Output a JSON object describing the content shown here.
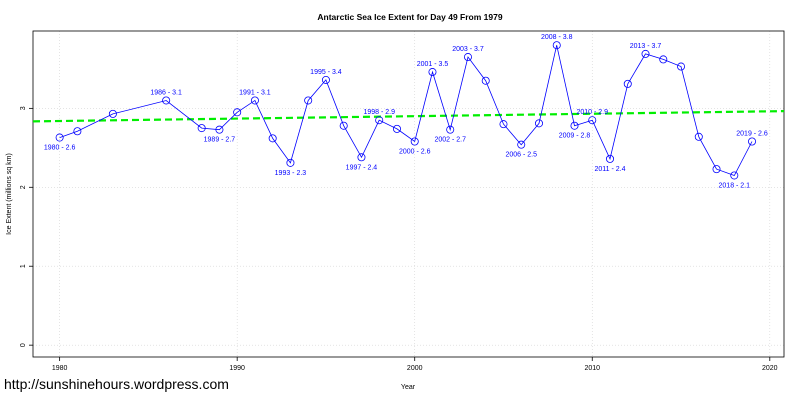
{
  "caption": "http://sunshinehours.wordpress.com",
  "colors": {
    "series_line": "#0000ff",
    "trend_line": "#00ee00",
    "grid": "#d3d3d3",
    "text": "#000000"
  },
  "chart_data": {
    "type": "line",
    "title": "Antarctic Sea Ice Extent for Day 49 From 1979",
    "xlabel": "Year",
    "ylabel": "Ice Extent (millions sq km)",
    "xlim": [
      1978.5,
      2020.8
    ],
    "ylim": [
      -0.15,
      3.98
    ],
    "xticks": [
      1980,
      1990,
      2000,
      2010,
      2020
    ],
    "yticks": [
      0,
      1,
      2,
      3
    ],
    "grid": true,
    "x": [
      1980,
      1981,
      1983,
      1986,
      1988,
      1989,
      1990,
      1991,
      1992,
      1993,
      1994,
      1995,
      1996,
      1997,
      1998,
      1999,
      2000,
      2001,
      2002,
      2003,
      2004,
      2005,
      2006,
      2007,
      2008,
      2009,
      2010,
      2011,
      2012,
      2013,
      2014,
      2015,
      2016,
      2017,
      2018,
      2019
    ],
    "series": [
      {
        "values": [
          2.63,
          2.71,
          2.93,
          3.1,
          2.75,
          2.73,
          2.95,
          3.1,
          2.62,
          2.31,
          3.1,
          3.36,
          2.78,
          2.38,
          2.85,
          2.74,
          2.58,
          3.46,
          2.73,
          3.65,
          3.35,
          2.8,
          2.54,
          2.81,
          3.8,
          2.78,
          2.85,
          2.36,
          3.31,
          3.69,
          3.62,
          3.53,
          2.64,
          2.23,
          2.15,
          2.58
        ]
      }
    ],
    "point_labels": [
      {
        "x": 1980,
        "text": "1980 - 2.6"
      },
      {
        "x": 1986,
        "text": "1986 - 3.1"
      },
      {
        "x": 1989,
        "text": "1989 - 2.7"
      },
      {
        "x": 1991,
        "text": "1991 - 3.1"
      },
      {
        "x": 1993,
        "text": "1993 - 2.3"
      },
      {
        "x": 1995,
        "text": "1995 - 3.4"
      },
      {
        "x": 1997,
        "text": "1997 - 2.4"
      },
      {
        "x": 1998,
        "text": "1998 - 2.9"
      },
      {
        "x": 2000,
        "text": "2000 - 2.6"
      },
      {
        "x": 2001,
        "text": "2001 - 3.5"
      },
      {
        "x": 2002,
        "text": "2002 - 2.7"
      },
      {
        "x": 2003,
        "text": "2003 - 3.7"
      },
      {
        "x": 2006,
        "text": "2006 - 2.5"
      },
      {
        "x": 2008,
        "text": "2008 - 3.8"
      },
      {
        "x": 2009,
        "text": "2009 - 2.8"
      },
      {
        "x": 2010,
        "text": "2010 - 2.9"
      },
      {
        "x": 2011,
        "text": "2011 - 2.4"
      },
      {
        "x": 2013,
        "text": "2013 - 3.7"
      },
      {
        "x": 2018,
        "text": "2018 - 2.1"
      },
      {
        "x": 2019,
        "text": "2019 - 2.6"
      }
    ],
    "trend": {
      "x": [
        1978.5,
        2020.8
      ],
      "y": [
        2.835,
        2.965
      ],
      "style": "dashed"
    }
  }
}
